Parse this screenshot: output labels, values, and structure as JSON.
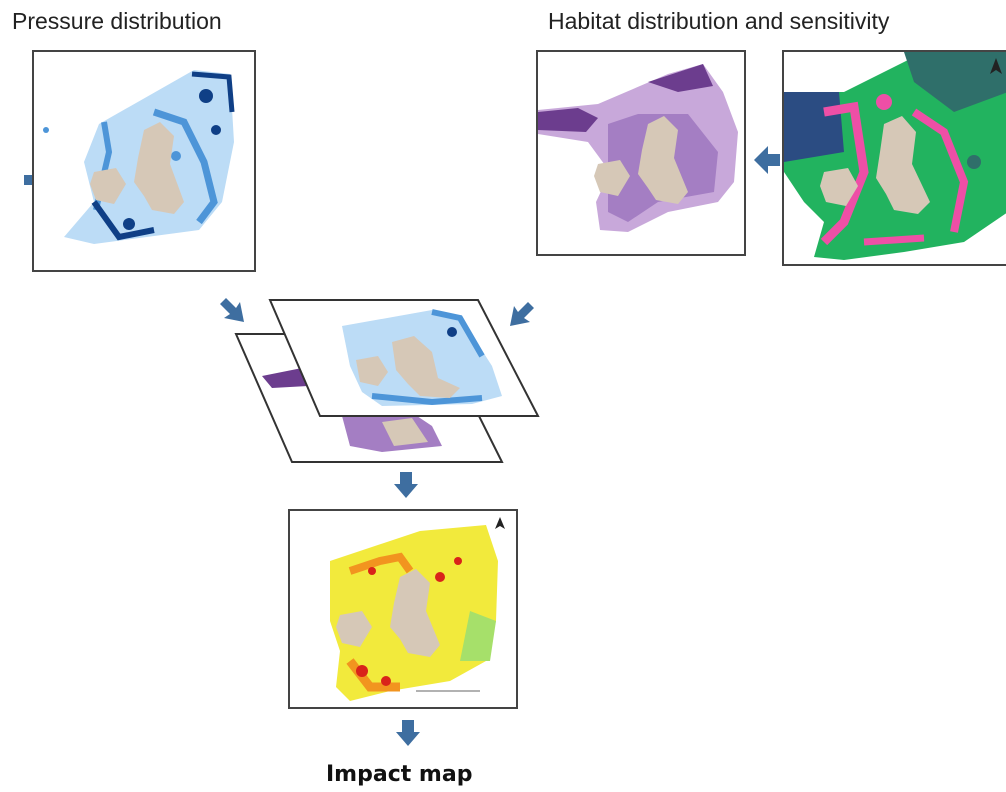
{
  "labels": {
    "pressure": "Pressure distribution",
    "habitat": "Habitat distribution  and sensitivity",
    "impact": "Impact map"
  },
  "colors": {
    "arrow": "#3e6ea0",
    "land": "#d6c8b7",
    "pressure_light": "#bcdcf6",
    "pressure_mid": "#4d95d8",
    "pressure_dark": "#0f3f86",
    "habitat_light": "#c8a8da",
    "habitat_mid": "#a47ec3",
    "habitat_dark": "#6c3d8e",
    "sens_green": "#22b35f",
    "sens_teal": "#2f6f6a",
    "sens_pink": "#ee4fa6",
    "sens_navy": "#2b4c82",
    "impact_yellow": "#f2ea3c",
    "impact_orange": "#f2941f",
    "impact_red": "#d9231a",
    "impact_green": "#a6e06a"
  },
  "icons": [
    "arrow-left-icon",
    "arrow-down-right-icon",
    "arrow-down-left-icon",
    "arrow-down-icon",
    "north-arrow-icon"
  ]
}
